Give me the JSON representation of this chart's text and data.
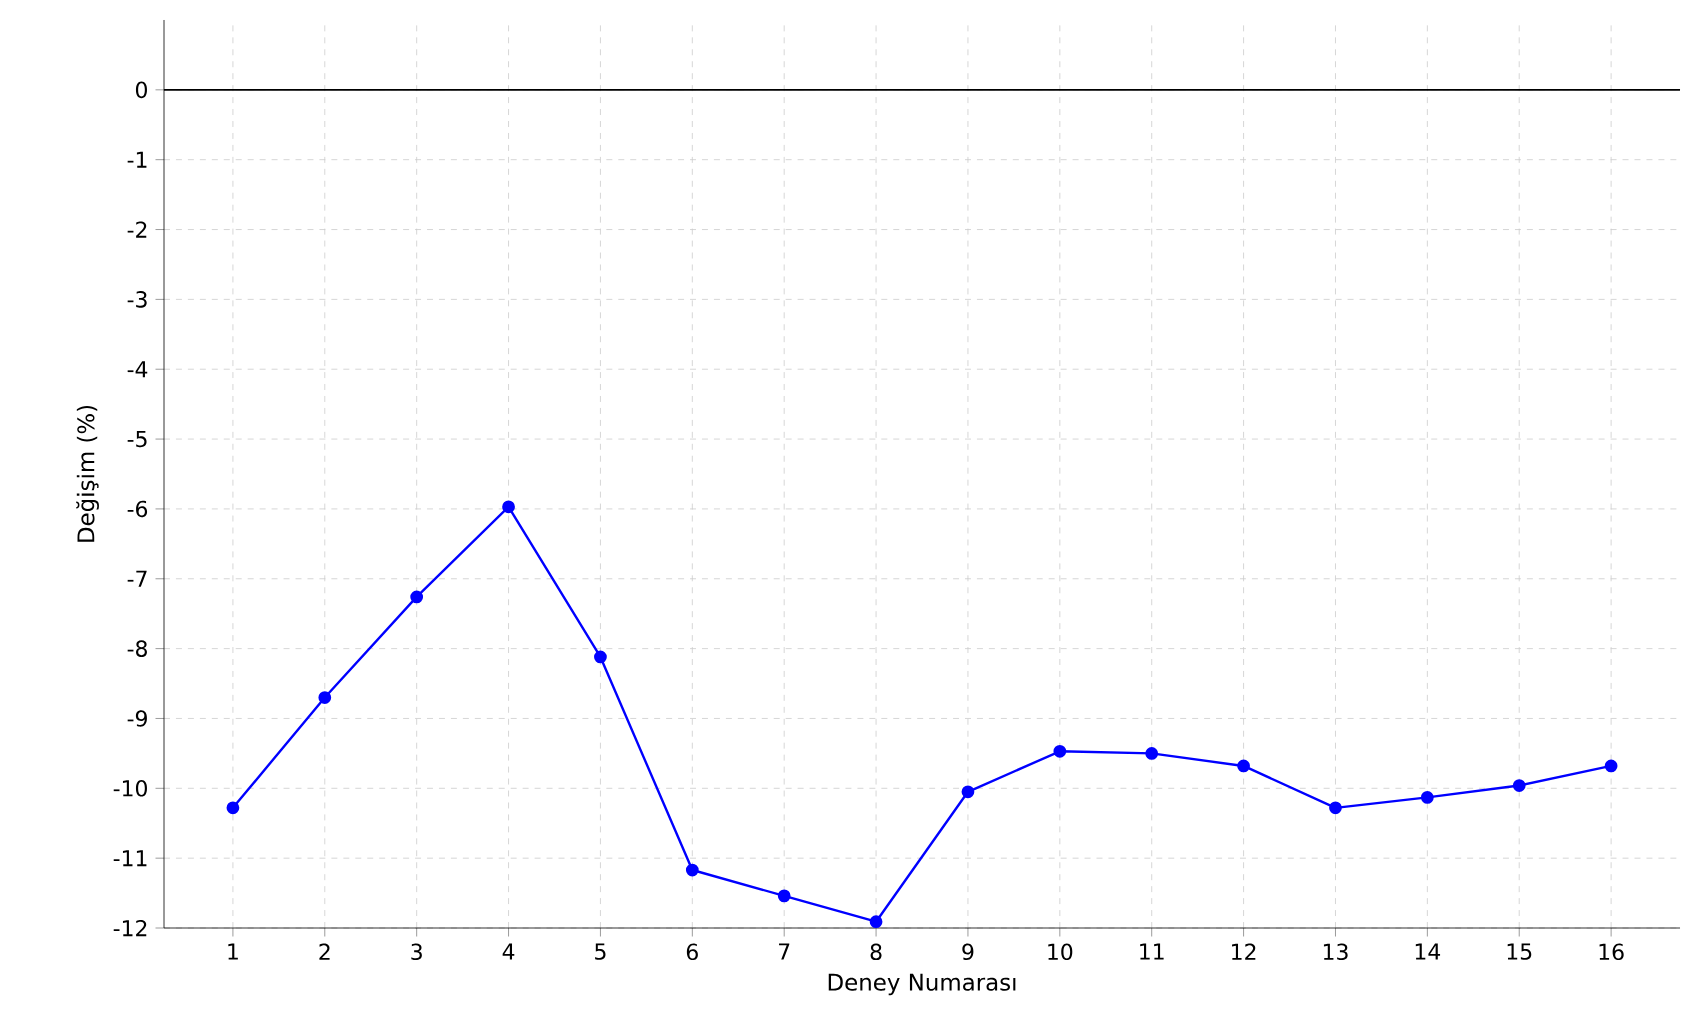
{
  "chart_data": {
    "type": "line",
    "xlabel": "Deney Numarası",
    "ylabel": "Değişim (%)",
    "x": [
      1,
      2,
      3,
      4,
      5,
      6,
      7,
      8,
      9,
      10,
      11,
      12,
      13,
      14,
      15,
      16
    ],
    "series": [
      {
        "color": "#0000ff",
        "values": [
          -10.28,
          -8.7,
          -7.26,
          -5.97,
          -8.12,
          -11.17,
          -11.54,
          -11.91,
          -10.05,
          -9.47,
          -9.5,
          -9.68,
          -10.28,
          -10.13,
          -9.96,
          -9.68
        ]
      }
    ],
    "xlim": [
      0.25,
      16.75
    ],
    "ylim": [
      -12,
      1
    ],
    "xticks": [
      1,
      2,
      3,
      4,
      5,
      6,
      7,
      8,
      9,
      10,
      11,
      12,
      13,
      14,
      15,
      16
    ],
    "yticks": [
      -12,
      -11,
      -10,
      -9,
      -8,
      -7,
      -6,
      -5,
      -4,
      -3,
      -2,
      -1,
      0
    ],
    "ref_lines": [
      {
        "axis": "y",
        "value": 0,
        "color": "#000000"
      }
    ],
    "grid": true,
    "marker": "circle",
    "line_style": "solid"
  }
}
